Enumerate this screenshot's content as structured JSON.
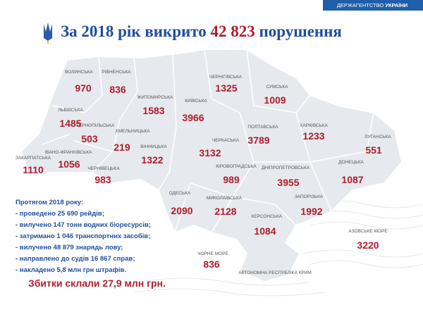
{
  "header": {
    "agency": "ДЕРЖАГЕНТСТВО",
    "country": "УКРАЇНИ"
  },
  "title": {
    "before": "За 2018 рік викрито",
    "number": "42 823",
    "after": "порушення"
  },
  "regions": [
    {
      "name": "ВОЛИНСЬКА",
      "value": 970
    },
    {
      "name": "РІВНЕНСЬКА",
      "value": 836
    },
    {
      "name": "ЛЬВІВСЬКА",
      "value": 1485
    },
    {
      "name": "ТЕРНОПІЛЬСЬКА",
      "value": 503
    },
    {
      "name": "ХМЕЛЬНИЦЬКА",
      "value": 219
    },
    {
      "name": "ЖИТОМИРСЬКА",
      "value": 1583
    },
    {
      "name": "КИЇВСЬКА",
      "value": 3966
    },
    {
      "name": "ЧЕРНІГІВСЬКА",
      "value": 1325
    },
    {
      "name": "СУМСЬКА",
      "value": 1009
    },
    {
      "name": "ПОЛТАВСЬКА",
      "value": 3789
    },
    {
      "name": "ХАРКІВСЬКА",
      "value": 1233
    },
    {
      "name": "ЛУГАНСЬКА",
      "value": 551
    },
    {
      "name": "ДОНЕЦЬКА",
      "value": 1087
    },
    {
      "name": "ДНІПРОПЕТРОВСЬКА",
      "value": 3955
    },
    {
      "name": "КІРОВОГРАДСЬКА",
      "value": 989
    },
    {
      "name": "ЧЕРКАСЬКА",
      "value": 3132
    },
    {
      "name": "ВІННИЦЬКА",
      "value": 1322
    },
    {
      "name": "ЧЕРНІВЕЦЬКА",
      "value": 983
    },
    {
      "name": "ІВАНО-ФРАНКІВСЬКА",
      "value": 1056
    },
    {
      "name": "ЗАКАРПАТСЬКА",
      "value": 1110
    },
    {
      "name": "ОДЕСЬКА",
      "value": 2090
    },
    {
      "name": "МИКОЛАЇВСЬКА",
      "value": 2128
    },
    {
      "name": "ЗАПОРІЗЬКА",
      "value": 1992
    },
    {
      "name": "ХЕРСОНСЬКА",
      "value": 1084
    },
    {
      "name": "АЗОВСЬКЕ МОРЕ",
      "value": 3220
    },
    {
      "name": "ЧОРНЕ МОРЕ",
      "value": 836
    }
  ],
  "crimea": "АВТОНОМНА РЕСПУБЛІКА КРИМ",
  "summary": {
    "heading": "Протягом 2018 року:",
    "items": [
      "- проведено 25 690 рейдів;",
      "- вилучено 147 тонн водних біоресурсів;",
      "- затримано 1 046 транспортних засобів;",
      "- вилучено 48 879 знарядь лову;",
      "- направлено до судів 16 867 справ;",
      "- накладено 5,8 млн грн штрафів."
    ],
    "damage": "Збитки склали 27,9 млн грн."
  }
}
